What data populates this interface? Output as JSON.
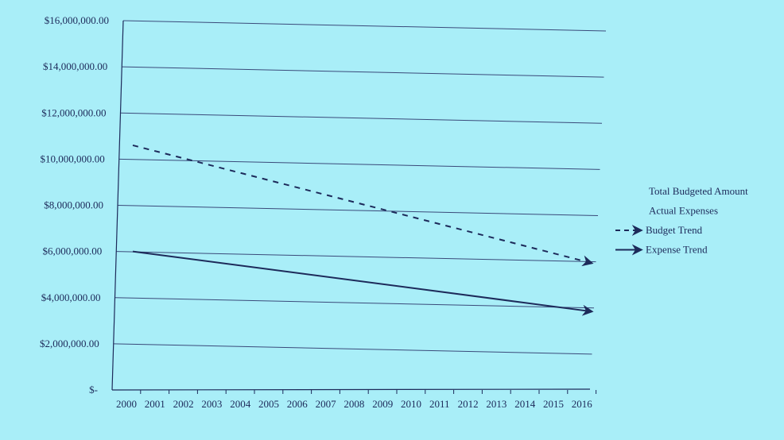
{
  "chart_data": {
    "type": "line",
    "title": "",
    "xlabel": "",
    "ylabel": "",
    "x_categories": [
      "2000",
      "2001",
      "2002",
      "2003",
      "2004",
      "2005",
      "2006",
      "2007",
      "2008",
      "2009",
      "2010",
      "2011",
      "2012",
      "2013",
      "2014",
      "2015",
      "2016"
    ],
    "y_ticks": [
      {
        "value": 0,
        "label": "$-"
      },
      {
        "value": 2000000,
        "label": "$2,000,000.00"
      },
      {
        "value": 4000000,
        "label": "$4,000,000.00"
      },
      {
        "value": 6000000,
        "label": "$6,000,000.00"
      },
      {
        "value": 8000000,
        "label": "$8,000,000.00"
      },
      {
        "value": 10000000,
        "label": "$10,000,000.00"
      },
      {
        "value": 12000000,
        "label": "$12,000,000.00"
      },
      {
        "value": 14000000,
        "label": "$14,000,000.00"
      },
      {
        "value": 16000000,
        "label": "$16,000,000.00"
      }
    ],
    "ylim": [
      0,
      16000000
    ],
    "grid": true,
    "legend_position": "right",
    "series": [
      {
        "name": "Total Budgeted Amount",
        "style": "none",
        "x": [],
        "y": []
      },
      {
        "name": "Actual Expenses",
        "style": "none",
        "x": [],
        "y": []
      },
      {
        "name": "Budget Trend",
        "style": "dashed-arrow",
        "x": [
          "2000",
          "2016"
        ],
        "y": [
          10600000,
          5500000
        ]
      },
      {
        "name": "Expense Trend",
        "style": "solid-arrow",
        "x": [
          "2000",
          "2016"
        ],
        "y": [
          6000000,
          3400000
        ]
      }
    ],
    "colors": {
      "background": "#a9eef8",
      "lines": "#1d2a5a",
      "grid": "#3a4a7a"
    }
  }
}
